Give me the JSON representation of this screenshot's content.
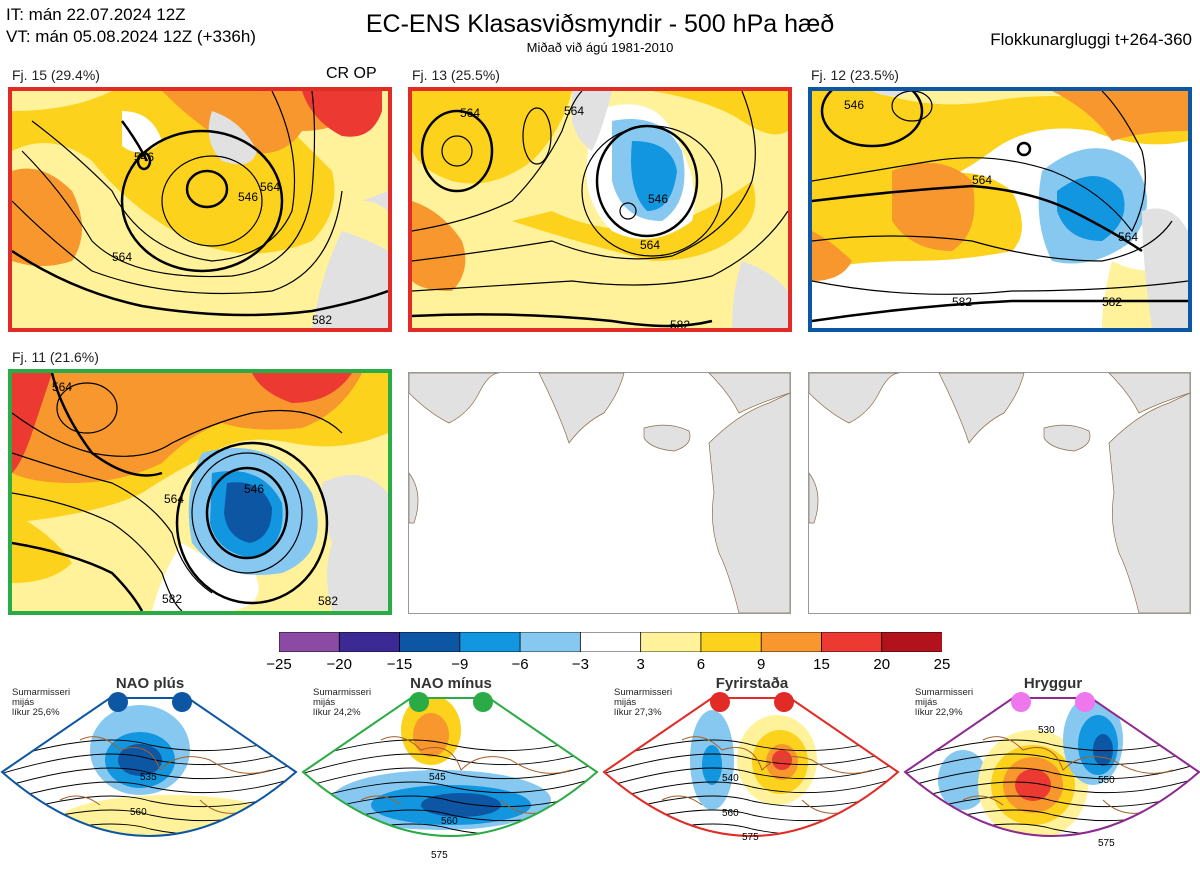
{
  "header": {
    "it_line": "IT: mán 22.07.2024 12Z",
    "vt_line": "VT: mán 05.08.2024 12Z  (+336h)",
    "title": "EC-ENS Klasasviðsmyndir - 500 hPa hæð",
    "subtitle": "Miðað við ágú 1981-2010",
    "window": "Flokkunargluggi t+264-360"
  },
  "panels": [
    {
      "label": "Fj. 15 (29.4%)",
      "extra": "CR OP",
      "border": "#e02b26",
      "contours": [
        "546",
        "564",
        "546",
        "564",
        "582"
      ]
    },
    {
      "label": "Fj. 13 (25.5%)",
      "border": "#e02b26",
      "contours": [
        "564",
        "564",
        "546",
        "564",
        "582"
      ]
    },
    {
      "label": "Fj. 12 (23.5%)",
      "border": "#0c56a4",
      "contours": [
        "546",
        "564",
        "564",
        "582",
        "582"
      ]
    },
    {
      "label": "Fj. 11 (21.6%)",
      "border": "#2aab45",
      "contours": [
        "564",
        "546",
        "564",
        "582",
        "582"
      ]
    }
  ],
  "colorbar": {
    "ticks": [
      "−25",
      "−20",
      "−15",
      "−9",
      "−6",
      "−3",
      "3",
      "6",
      "9",
      "15",
      "20",
      "25"
    ],
    "colors": [
      "#8b4aa3",
      "#3b2a93",
      "#0c56a4",
      "#1296e0",
      "#86c8f0",
      "#ffffff",
      "#fff29a",
      "#fcd21c",
      "#f7972d",
      "#ec3a32",
      "#b2121b"
    ]
  },
  "regimes": [
    {
      "name": "NAO plús",
      "note": [
        "Sumarmisseri",
        "mijás",
        "líkur 25,6%"
      ],
      "color": "#0c56a4",
      "dot": "#0c56a4",
      "contours": [
        "535",
        "560"
      ]
    },
    {
      "name": "NAO mínus",
      "note": [
        "Sumarmisseri",
        "mijás",
        "líkur 24,2%"
      ],
      "color": "#2aab45",
      "dot": "#2aab45",
      "contours": [
        "545",
        "560",
        "575"
      ]
    },
    {
      "name": "Fyrirstaða",
      "note": [
        "Sumarmisseri",
        "mijás",
        "líkur 27,3%"
      ],
      "color": "#e02b26",
      "dot": "#e02b26",
      "contours": [
        "540",
        "560",
        "575"
      ]
    },
    {
      "name": "Hryggur",
      "note": [
        "Sumarmisseri",
        "mijás",
        "líkur 22,9%"
      ],
      "color": "#8c2a8f",
      "dot": "#ee77ee",
      "contours": [
        "530",
        "550",
        "575"
      ]
    }
  ]
}
